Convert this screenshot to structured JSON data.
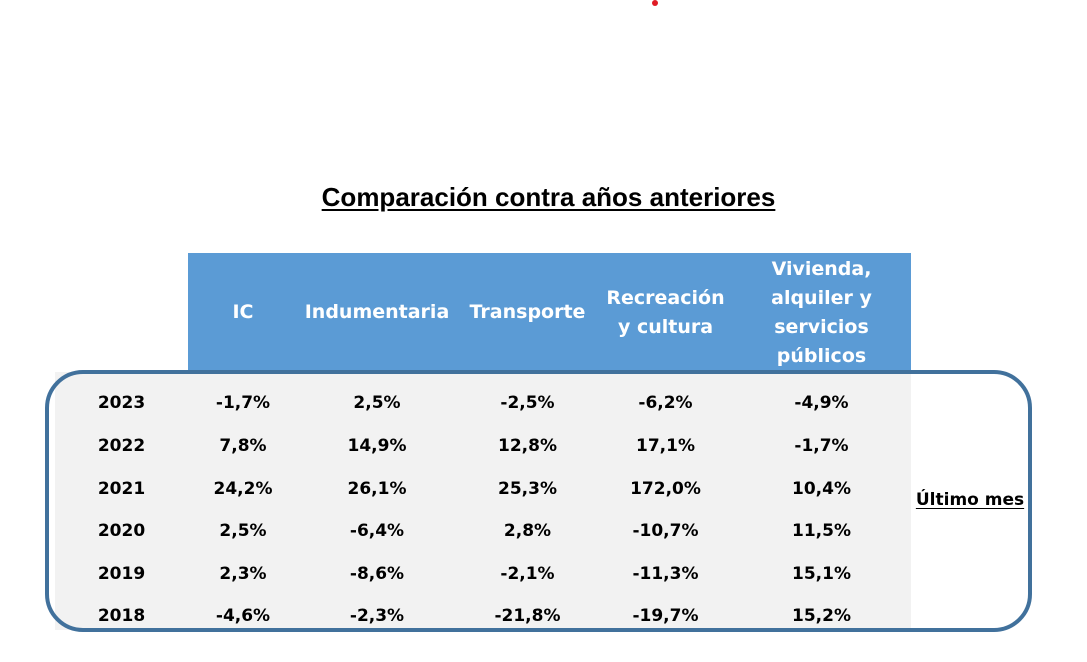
{
  "title": "Comparación contra años anteriores",
  "side_label": "Último mes",
  "accent_color": "#5b9bd5",
  "frame_color": "#41719c",
  "columns": [
    "IC",
    "Indumentaria",
    "Transporte",
    "Recreación y cultura",
    "Vivienda, alquiler y servicios públicos"
  ],
  "rows": [
    {
      "year": "2023",
      "values": [
        "-1,7%",
        "2,5%",
        "-2,5%",
        "-6,2%",
        "-4,9%"
      ]
    },
    {
      "year": "2022",
      "values": [
        "7,8%",
        "14,9%",
        "12,8%",
        "17,1%",
        "-1,7%"
      ]
    },
    {
      "year": "2021",
      "values": [
        "24,2%",
        "26,1%",
        "25,3%",
        "172,0%",
        "10,4%"
      ]
    },
    {
      "year": "2020",
      "values": [
        "2,5%",
        "-6,4%",
        "2,8%",
        "-10,7%",
        "11,5%"
      ]
    },
    {
      "year": "2019",
      "values": [
        "2,3%",
        "-8,6%",
        "-2,1%",
        "-11,3%",
        "15,1%"
      ]
    },
    {
      "year": "2018",
      "values": [
        "-4,6%",
        "-2,3%",
        "-21,8%",
        "-19,7%",
        "15,2%"
      ]
    }
  ]
}
